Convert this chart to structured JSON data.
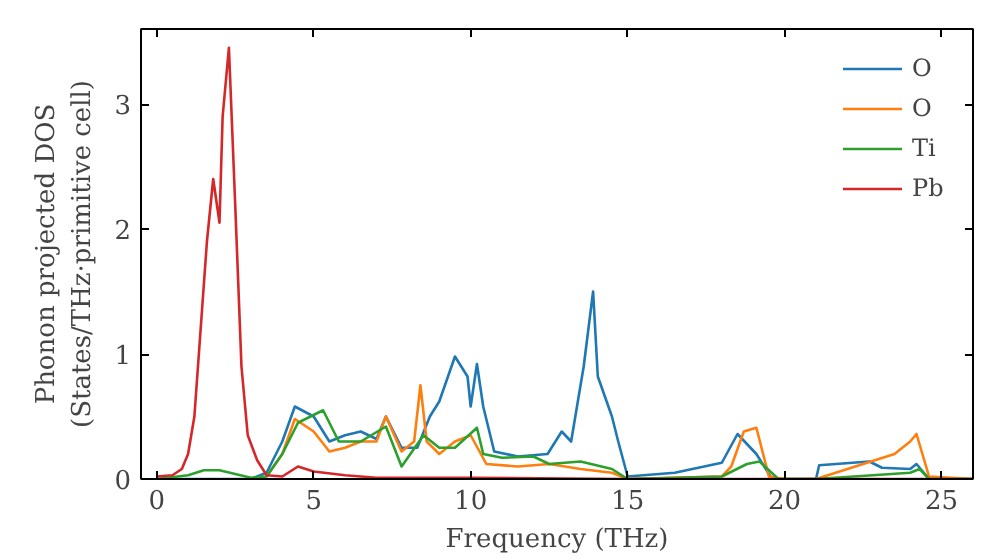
{
  "chart_data": {
    "type": "line",
    "xlabel": "Frequency (THz)",
    "ylabel": "Phonon projected DOS\n(States/THz·primitive cell)",
    "xlim": [
      -0.5,
      26
    ],
    "ylim": [
      0,
      3.6
    ],
    "xticks": [
      0,
      5,
      10,
      15,
      20,
      25
    ],
    "yticks": [
      0,
      1,
      2,
      3
    ],
    "grid": false,
    "legend": "top right",
    "marker": "none",
    "line_style": "solid",
    "series": [
      {
        "name": "O",
        "color": "#1f77b4",
        "x": [
          0,
          3,
          3.5,
          4,
          4.4,
          5,
          5.5,
          6,
          6.5,
          7,
          7.3,
          7.8,
          8.3,
          8.7,
          9.0,
          9.5,
          9.9,
          10.0,
          10.2,
          10.4,
          10.75,
          11.5,
          12.45,
          12.9,
          13.2,
          13.6,
          13.9,
          14.05,
          14.5,
          14.7,
          15.0,
          16.5,
          18.0,
          18.5,
          19.1,
          19.6,
          21.0,
          21.1,
          22.7,
          23.1,
          24.0,
          24.2,
          24.6,
          26
        ],
        "values": [
          0,
          0,
          0.05,
          0.3,
          0.58,
          0.5,
          0.3,
          0.35,
          0.38,
          0.32,
          0.5,
          0.25,
          0.25,
          0.5,
          0.62,
          0.98,
          0.82,
          0.58,
          0.92,
          0.58,
          0.22,
          0.18,
          0.2,
          0.38,
          0.3,
          0.9,
          1.5,
          0.82,
          0.5,
          0.3,
          0.02,
          0.05,
          0.13,
          0.36,
          0.2,
          0,
          0,
          0.11,
          0.14,
          0.09,
          0.08,
          0.12,
          0,
          0
        ]
      },
      {
        "name": "O",
        "color": "#ff7f0e",
        "x": [
          3.5,
          4,
          4.4,
          5,
          5.5,
          6,
          6.5,
          7,
          7.3,
          7.8,
          8.2,
          8.4,
          8.6,
          9,
          9.5,
          10,
          10.5,
          11.5,
          12.5,
          13.5,
          14.5,
          15,
          18,
          18.3,
          18.7,
          19.1,
          19.5,
          20,
          21,
          23.5,
          24.0,
          24.2,
          24.6,
          26
        ],
        "values": [
          0.02,
          0.2,
          0.48,
          0.38,
          0.22,
          0.25,
          0.3,
          0.3,
          0.5,
          0.22,
          0.3,
          0.75,
          0.3,
          0.2,
          0.3,
          0.35,
          0.12,
          0.1,
          0.12,
          0.08,
          0.05,
          0,
          0.02,
          0.1,
          0.38,
          0.41,
          0.02,
          0,
          0,
          0.2,
          0.3,
          0.36,
          0.02,
          0
        ]
      },
      {
        "name": "Ti",
        "color": "#2ca02c",
        "x": [
          0,
          1,
          1.5,
          2,
          2.5,
          3,
          3.5,
          4,
          4.5,
          5.3,
          5.8,
          6.5,
          7.3,
          7.8,
          8.5,
          9,
          9.5,
          10.2,
          10.4,
          11,
          12,
          12.5,
          13.5,
          14.5,
          15,
          18,
          18.8,
          19.2,
          19.8,
          21,
          24,
          24.3,
          24.6,
          26
        ],
        "values": [
          0,
          0.03,
          0.07,
          0.07,
          0.04,
          0.01,
          0.02,
          0.2,
          0.45,
          0.55,
          0.3,
          0.3,
          0.42,
          0.1,
          0.35,
          0.25,
          0.25,
          0.41,
          0.2,
          0.17,
          0.18,
          0.12,
          0.14,
          0.08,
          0,
          0.02,
          0.12,
          0.14,
          0,
          0,
          0.05,
          0.08,
          0,
          0
        ]
      },
      {
        "name": "Pb",
        "color": "#d62728",
        "x": [
          0,
          0.5,
          0.8,
          1.0,
          1.2,
          1.4,
          1.6,
          1.8,
          2.0,
          2.1,
          2.3,
          2.5,
          2.7,
          2.9,
          3.2,
          3.5,
          4,
          4.5,
          5,
          6,
          7,
          10,
          15,
          26
        ],
        "values": [
          0.02,
          0.03,
          0.08,
          0.2,
          0.5,
          1.2,
          1.9,
          2.4,
          2.05,
          2.9,
          3.45,
          2.2,
          0.9,
          0.35,
          0.15,
          0.03,
          0.02,
          0.1,
          0.06,
          0.03,
          0.01,
          0.01,
          0,
          0
        ]
      }
    ]
  }
}
